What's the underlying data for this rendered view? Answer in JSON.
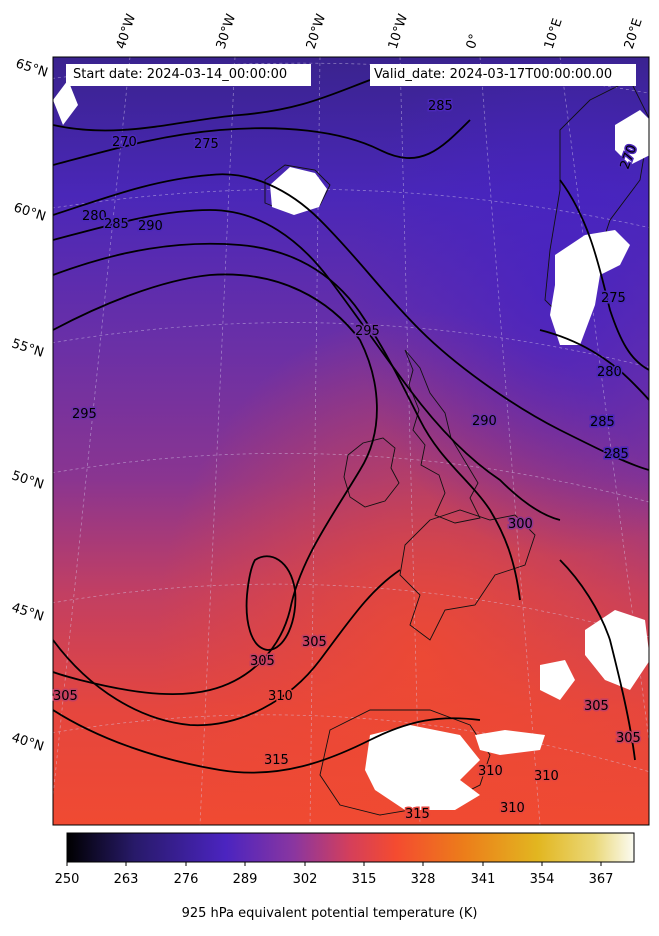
{
  "header": {
    "start_date": "Start date: 2024-03-14_00:00:00",
    "valid_date": "Valid_date: 2024-03-17T00:00:00.00"
  },
  "graticule": {
    "latitudes": [
      "65°N",
      "60°N",
      "55°N",
      "50°N",
      "45°N",
      "40°N"
    ],
    "longitudes": [
      "40°W",
      "30°W",
      "20°W",
      "10°W",
      "0°",
      "10°E",
      "20°E"
    ]
  },
  "contours": {
    "labels": [
      "270",
      "275",
      "280",
      "285",
      "290",
      "285",
      "295",
      "295",
      "290",
      "300",
      "305",
      "305",
      "305",
      "310",
      "315",
      "315",
      "310",
      "310",
      "310",
      "305",
      "305",
      "275",
      "280",
      "285",
      "285",
      "270"
    ]
  },
  "colorbar": {
    "ticks": [
      "250",
      "263",
      "276",
      "289",
      "302",
      "315",
      "328",
      "341",
      "354",
      "367"
    ],
    "label": "925 hPa equivalent potential temperature (K)",
    "colors": [
      "#000000",
      "#2a1a6e",
      "#4b24c0",
      "#7a36a8",
      "#c43c6a",
      "#f44b30",
      "#ec7d1a",
      "#e0b21e",
      "#ecd860",
      "#fbfbf0"
    ]
  }
}
